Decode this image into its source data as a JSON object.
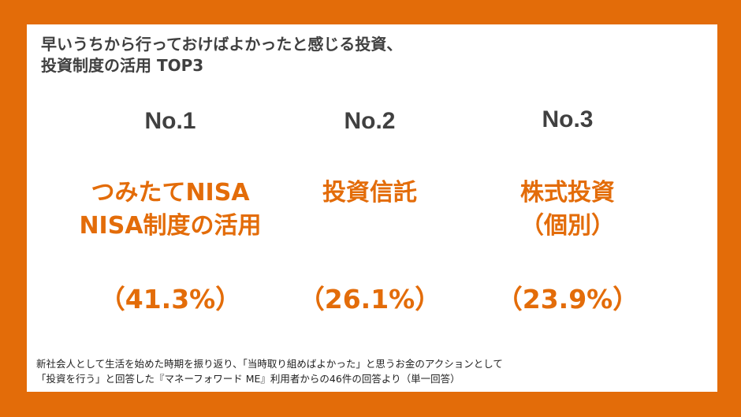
{
  "title": {
    "line1": "早いうちから行っておけばよかったと感じる投資、",
    "line2": "投資制度の活用 TOP3"
  },
  "ranks": [
    {
      "no": "No.1",
      "name_line1": "つみたてNISA",
      "name_line2": "NISA制度の活用",
      "percent": "（41.3%）"
    },
    {
      "no": "No.2",
      "name_line1": "投資信託",
      "name_line2": "",
      "percent": "（26.1%）"
    },
    {
      "no": "No.3",
      "name_line1": "株式投資",
      "name_line2": "（個別）",
      "percent": "（23.9%）"
    }
  ],
  "note": {
    "line1": "新社会人として生活を始めた時期を振り返り、「当時取り組めばよかった」と思うお金のアクションとして",
    "line2": "「投資を行う」と回答した『マネーフォワード ME』利用者からの46件の回答より（単一回答）"
  },
  "colors": {
    "accent": "#E36C09",
    "text_dark": "#404040"
  }
}
